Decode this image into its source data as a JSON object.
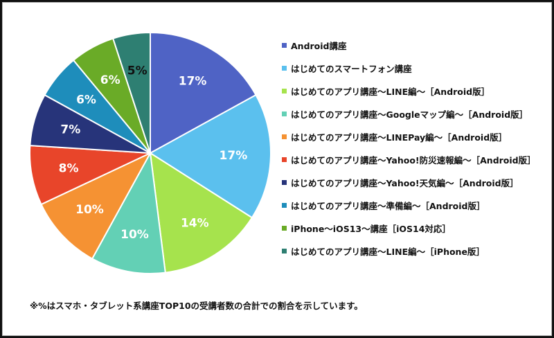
{
  "chart_data": {
    "type": "pie",
    "title": "",
    "labels": [
      "Android講座",
      "はじめてのスマートフォン講座",
      "はじめてのアプリ講座～LINE編～［Android版］",
      "はじめてのアプリ講座～Googleマップ編～［Android版］",
      "はじめてのアプリ講座～LINEPay編～［Android版］",
      "はじめてのアプリ講座～Yahoo!防災速報編～［Android版］",
      "はじめてのアプリ講座～Yahoo!天気編～［Android版］",
      "はじめてのアプリ講座～準備編～［Android版］",
      "iPhone～iOS13～講座［iOS14対応］",
      "はじめてのアプリ講座～LINE編～［iPhone版］"
    ],
    "values": [
      17,
      17,
      14,
      10,
      10,
      8,
      7,
      6,
      6,
      5
    ],
    "value_labels": [
      "17%",
      "17%",
      "14%",
      "10%",
      "10%",
      "8%",
      "7%",
      "6%",
      "6%",
      "5%"
    ],
    "colors": [
      "#4f63c5",
      "#5bc0ee",
      "#a6e34d",
      "#63d0b5",
      "#f59233",
      "#e8452a",
      "#27347a",
      "#1e8dbb",
      "#6aab27",
      "#2e7f72"
    ],
    "label_colors": [
      "#ffffff",
      "#ffffff",
      "#ffffff",
      "#ffffff",
      "#ffffff",
      "#ffffff",
      "#ffffff",
      "#ffffff",
      "#ffffff",
      "#111111"
    ],
    "start_angle_deg": 0,
    "direction": "clockwise",
    "legend_position": "right"
  },
  "footnote": "※%はスマホ・タブレット系講座TOP10の受講者数の合計での割合を示しています。"
}
